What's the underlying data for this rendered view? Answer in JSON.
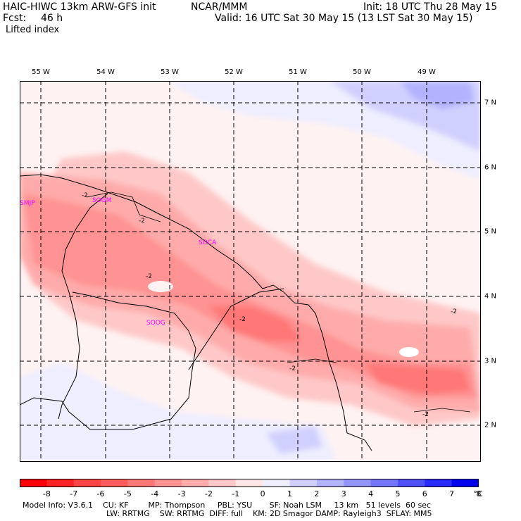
{
  "header": {
    "model": "HAIC-HIWC 13km ARW-GFS init",
    "center": "NCAR/MMM",
    "init": "Init: 18 UTC Thu 28 May 15",
    "fcst_label": "Fcst:",
    "fcst_value": "46 h",
    "valid": "Valid: 16 UTC Sat 30 May 15 (13 LST Sat 30 May 15)",
    "field": "Lifted index"
  },
  "map": {
    "lon_labels": [
      "55 W",
      "54 W",
      "53 W",
      "52 W",
      "51 W",
      "50 W",
      "49 W"
    ],
    "lat_labels": [
      "7 N",
      "6 N",
      "5 N",
      "4 N",
      "3 N",
      "2 N"
    ],
    "stations": [
      "SMJP",
      "SOGM",
      "SOCA",
      "SOOG"
    ],
    "contour_labels": [
      "-2",
      "-2",
      "-2",
      "-2",
      "-2",
      "-2",
      "-2"
    ]
  },
  "colorbar": {
    "ticks": [
      "-8",
      "-7",
      "-6",
      "-5",
      "-4",
      "-3",
      "-2",
      "-1",
      "0",
      "1",
      "2",
      "3",
      "4",
      "5",
      "6",
      "7",
      "8"
    ],
    "unit": "°C",
    "colors": [
      "#ff0000",
      "#ff2222",
      "#ff4444",
      "#ff5c5c",
      "#ff7777",
      "#ff9292",
      "#ffabab",
      "#ffc8c8",
      "#ffe6e6",
      "#eeeeff",
      "#d0d0ff",
      "#b2b2ff",
      "#9494ff",
      "#7474ff",
      "#5050ff",
      "#2a2aff",
      "#0000ee"
    ]
  },
  "model_info": {
    "line1": "Model Info: V3.6.1    CU: KF        MP: Thompson     PBL: YSU       SF: Noah LSM     13 km   51 levels  60 sec",
    "line2": "LW: RRTMG    SW: RRTMG  DIFF: full    KM: 2D Smagor DAMP: Rayleigh3  SFLAY: MM5"
  }
}
